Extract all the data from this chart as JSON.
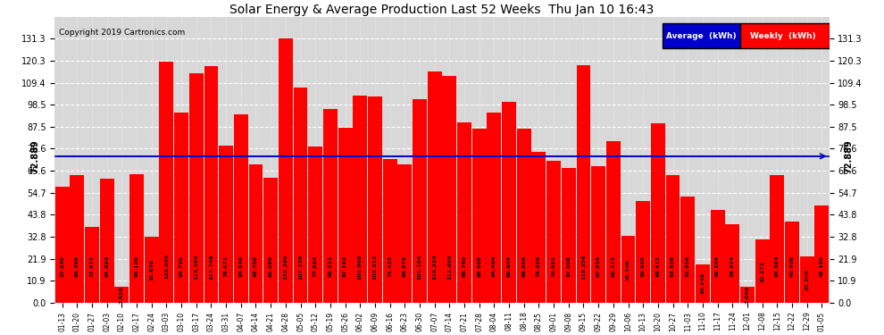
{
  "title": "Solar Energy & Average Production Last 52 Weeks  Thu Jan 10 16:43",
  "copyright": "Copyright 2019 Cartronics.com",
  "average_line": 72.889,
  "average_label": "72.889",
  "bar_color": "#FF0000",
  "average_line_color": "#0000CC",
  "background_color": "#FFFFFF",
  "plot_bg_color": "#D8D8D8",
  "grid_color": "#BBBBBB",
  "ylim": [
    0,
    142
  ],
  "yticks": [
    0.0,
    10.9,
    21.9,
    32.8,
    43.8,
    54.7,
    65.6,
    76.6,
    87.5,
    98.5,
    109.4,
    120.3,
    131.3
  ],
  "legend_average_color": "#0000CC",
  "legend_weekly_color": "#FF0000",
  "categories": [
    "01-13",
    "01-20",
    "01-27",
    "02-03",
    "02-10",
    "02-17",
    "02-24",
    "03-03",
    "03-10",
    "03-17",
    "03-24",
    "03-31",
    "04-07",
    "04-14",
    "04-21",
    "04-28",
    "05-05",
    "05-12",
    "05-19",
    "05-26",
    "06-02",
    "06-09",
    "06-16",
    "06-23",
    "06-30",
    "07-07",
    "07-14",
    "07-21",
    "07-28",
    "08-04",
    "08-11",
    "08-18",
    "08-25",
    "09-01",
    "09-08",
    "09-15",
    "09-22",
    "09-29",
    "10-06",
    "10-13",
    "10-20",
    "10-27",
    "11-03",
    "11-10",
    "11-17",
    "11-24",
    "12-01",
    "12-08",
    "12-15",
    "12-22",
    "12-29",
    "01-05"
  ],
  "values": [
    57.64,
    63.396,
    37.872,
    61.694,
    7.926,
    64.12,
    32.856,
    120.02,
    94.78,
    114.184,
    117.748,
    78.072,
    93.84,
    68.768,
    62.08,
    131.28,
    107.136,
    77.864,
    96.332,
    87.192,
    102.968,
    102.512,
    71.432,
    68.976,
    101.104,
    115.224,
    112.864,
    89.76,
    86.668,
    94.496,
    99.904,
    86.668,
    74.956,
    70.692,
    67.008,
    118.256,
    67.856,
    80.272,
    33.1,
    50.56,
    89.412,
    63.508,
    52.956,
    19.148,
    46.104,
    38.924,
    7.84,
    31.272,
    63.584,
    40.408,
    23.2,
    48.16
  ],
  "bar_texts": [
    "57.640",
    "63.396",
    "37.872",
    "61.694",
    "7.926",
    "64.120",
    "32.856",
    "120.020",
    "94.780",
    "114.184",
    "117.748",
    "78.072",
    "93.840",
    "68.768",
    "62.080",
    "131.280",
    "107.136",
    "77.864",
    "96.332",
    "87.192",
    "102.968",
    "102.512",
    "71.432",
    "68.976",
    "101.104",
    "115.224",
    "112.864",
    "89.760",
    "86.668",
    "94.496",
    "99.904",
    "86.668",
    "74.956",
    "70.692",
    "67.008",
    "118.256",
    "67.856",
    "80.272",
    "33.100",
    "50.560",
    "89.412",
    "63.508",
    "52.956",
    "19.148",
    "46.104",
    "38.924",
    "7.840",
    "31.272",
    "63.584",
    "40.408",
    "23.200",
    "48.160"
  ]
}
